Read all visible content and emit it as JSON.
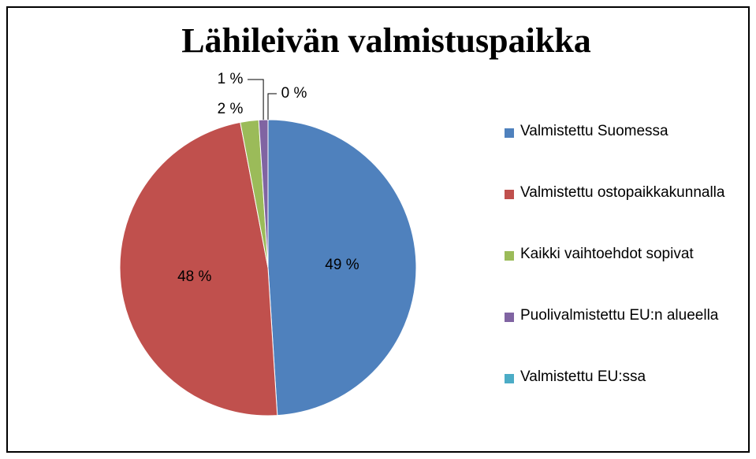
{
  "chart_data": {
    "type": "pie",
    "title": "Lähileivän valmistuspaikka",
    "categories": [
      "Valmistettu Suomessa",
      "Valmistettu ostopaikkakunnalla",
      "Kaikki vaihtoehdot sopivat",
      "Puolivalmistettu EU:n alueella",
      "Valmistettu EU:ssa"
    ],
    "values": [
      49,
      48,
      2,
      1,
      0
    ],
    "value_labels": [
      "49 %",
      "48 %",
      "2 %",
      "1 %",
      "0 %"
    ],
    "colors": [
      "#4f81bd",
      "#c0504d",
      "#9bbb59",
      "#8064a2",
      "#4bacc6"
    ],
    "legend": "right"
  }
}
